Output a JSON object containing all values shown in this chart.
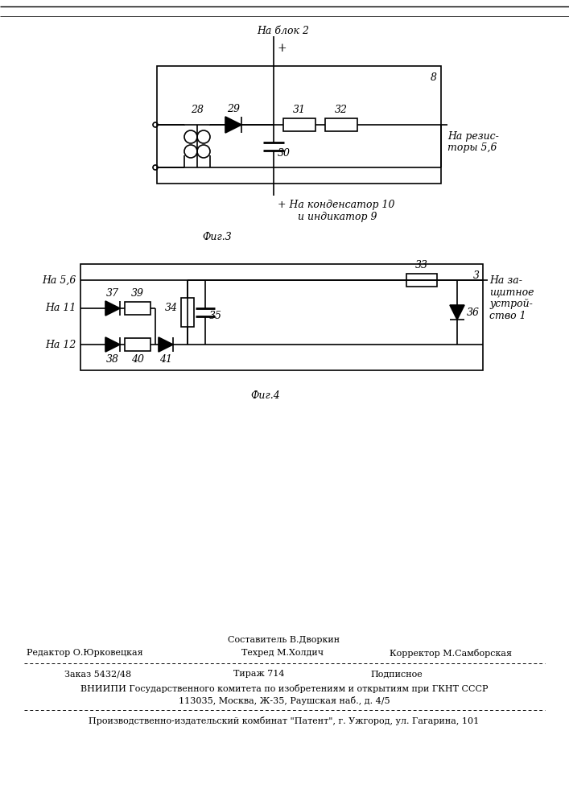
{
  "bg_color": "#ffffff",
  "fig3": {
    "caption": "Фиг.3",
    "label_blok2": "На блок 2",
    "label_rezistory": "На резис-\nторы 5,6",
    "label_kondensator": "+ На конденсатор 10",
    "label_kondensator2": "   и индикатор 9",
    "num_28": "28",
    "num_29": "29",
    "num_30": "30",
    "num_31": "31",
    "num_32": "32",
    "num_8": "8"
  },
  "fig4": {
    "caption": "Фиг.4",
    "label_56": "На 5,6",
    "label_11": "На 11",
    "label_12": "На 12",
    "label_right": "На за-\nщитное\nустрой-\nство 1",
    "num_37": "37",
    "num_38": "38",
    "num_39": "39",
    "num_40": "40",
    "num_41": "41",
    "num_33": "33",
    "num_34": "34",
    "num_35": "35",
    "num_36": "36",
    "num_3": "3"
  },
  "footer": {
    "sestavitel": "Составитель В.Дворкин",
    "redaktor": "Редактор О.Юрковецкая",
    "tehred": "Техред М.Холдич",
    "korrektor": "Корректор М.Самборская",
    "zakaz": "Заказ 5432/48",
    "tirazh": "Тираж 714",
    "podpisnoe": "Подписное",
    "vniipи": "ВНИИПИ Государственного комитета по изобретениям и открытиям при ГКНТ СССР",
    "address": "113035, Москва, Ж-35, Раушская наб., д. 4/5",
    "production": "Производственно-издательский комбинат \"Патент\", г. Ужгород, ул. Гагарина, 101"
  }
}
